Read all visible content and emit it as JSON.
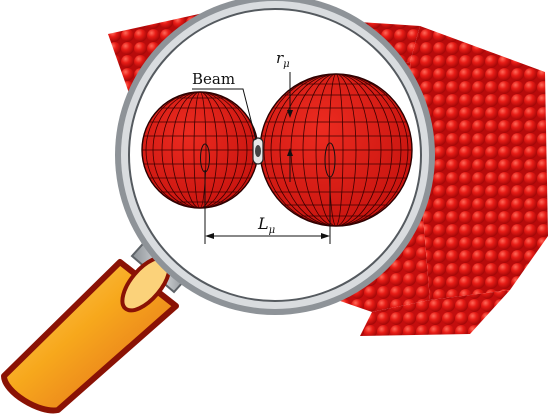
{
  "labels": {
    "beam": "Beam",
    "radius_symbol": "r",
    "radius_sub": "μ",
    "length_symbol": "L",
    "length_sub": "μ"
  },
  "colors": {
    "particle_red": "#e01818",
    "sphere_red": "#e2231a",
    "grid_line": "#3a0000",
    "lens_frame": "#9aa0a6",
    "handle_orange": "#f5a21a",
    "handle_outline": "#8a1205"
  },
  "icons": {
    "magnifier": "magnifying-glass-icon"
  }
}
